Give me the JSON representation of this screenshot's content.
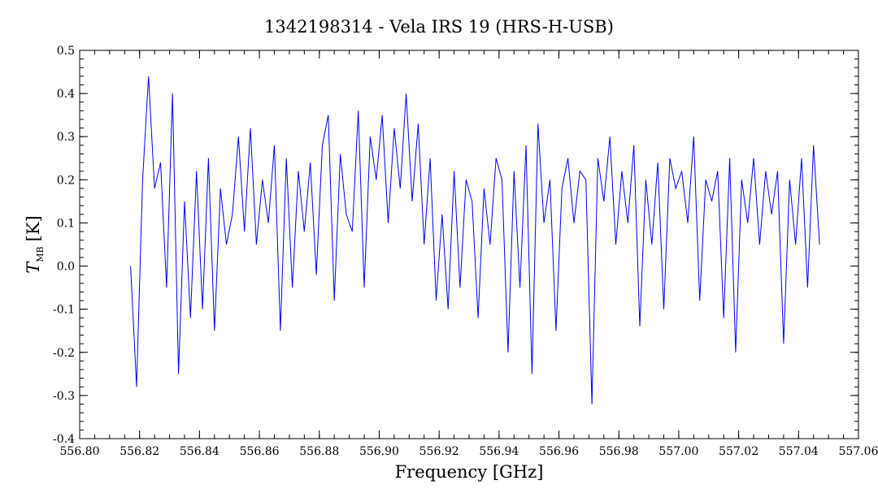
{
  "chart_data": {
    "type": "line",
    "title": "1342198314 - Vela IRS 19 (HRS-H-USB)",
    "xlabel": "Frequency [GHz]",
    "ylabel_symbol": "T",
    "ylabel_subscript": "MB",
    "ylabel_unit": "[K]",
    "xlim": [
      556.8,
      557.06
    ],
    "ylim": [
      -0.4,
      0.5
    ],
    "x_ticks": [
      "556.80",
      "556.82",
      "556.84",
      "556.86",
      "556.88",
      "556.90",
      "556.92",
      "556.94",
      "556.96",
      "556.98",
      "557.00",
      "557.02",
      "557.04",
      "557.06"
    ],
    "y_ticks": [
      "-0.4",
      "-0.3",
      "-0.2",
      "-0.1",
      "0.0",
      "0.1",
      "0.2",
      "0.3",
      "0.4",
      "0.5"
    ],
    "grid": false,
    "series": [
      {
        "color": "#0000ff",
        "x": [
          556.817,
          556.819,
          556.821,
          556.823,
          556.825,
          556.827,
          556.829,
          556.831,
          556.833,
          556.835,
          556.837,
          556.839,
          556.841,
          556.843,
          556.845,
          556.847,
          556.849,
          556.851,
          556.853,
          556.855,
          556.857,
          556.859,
          556.861,
          556.863,
          556.865,
          556.867,
          556.869,
          556.871,
          556.873,
          556.875,
          556.877,
          556.879,
          556.881,
          556.883,
          556.885,
          556.887,
          556.889,
          556.891,
          556.893,
          556.895,
          556.897,
          556.899,
          556.901,
          556.903,
          556.905,
          556.907,
          556.909,
          556.911,
          556.913,
          556.915,
          556.917,
          556.919,
          556.921,
          556.923,
          556.925,
          556.927,
          556.929,
          556.931,
          556.933,
          556.935,
          556.937,
          556.939,
          556.941,
          556.943,
          556.945,
          556.947,
          556.949,
          556.951,
          556.953,
          556.955,
          556.957,
          556.959,
          556.961,
          556.963,
          556.965,
          556.967,
          556.969,
          556.971,
          556.973,
          556.975,
          556.977,
          556.979,
          556.981,
          556.983,
          556.985,
          556.987,
          556.989,
          556.991,
          556.993,
          556.995,
          556.997,
          556.999,
          557.001,
          557.003,
          557.005,
          557.007,
          557.009,
          557.011,
          557.013,
          557.015,
          557.017,
          557.019,
          557.021,
          557.023,
          557.025,
          557.027,
          557.029,
          557.031,
          557.033,
          557.035,
          557.037,
          557.039,
          557.041,
          557.043,
          557.045,
          557.047
        ],
        "y": [
          0.0,
          -0.28,
          0.2,
          0.44,
          0.18,
          0.24,
          -0.05,
          0.4,
          -0.25,
          0.15,
          -0.12,
          0.22,
          -0.1,
          0.25,
          -0.15,
          0.18,
          0.05,
          0.12,
          0.3,
          0.08,
          0.32,
          0.05,
          0.2,
          0.1,
          0.28,
          -0.15,
          0.25,
          -0.05,
          0.22,
          0.08,
          0.24,
          -0.02,
          0.28,
          0.35,
          -0.08,
          0.26,
          0.12,
          0.08,
          0.36,
          -0.05,
          0.3,
          0.2,
          0.35,
          0.1,
          0.32,
          0.18,
          0.4,
          0.15,
          0.33,
          0.05,
          0.25,
          -0.08,
          0.12,
          -0.1,
          0.22,
          -0.05,
          0.2,
          0.15,
          -0.12,
          0.18,
          0.05,
          0.25,
          0.2,
          -0.2,
          0.22,
          -0.05,
          0.28,
          -0.25,
          0.33,
          0.1,
          0.2,
          -0.15,
          0.18,
          0.25,
          0.1,
          0.22,
          0.2,
          -0.32,
          0.25,
          0.15,
          0.3,
          0.05,
          0.22,
          0.1,
          0.28,
          -0.14,
          0.2,
          0.05,
          0.24,
          -0.1,
          0.25,
          0.18,
          0.22,
          0.1,
          0.3,
          -0.08,
          0.2,
          0.15,
          0.22,
          -0.12,
          0.25,
          -0.2,
          0.2,
          0.1,
          0.25,
          0.05,
          0.22,
          0.12,
          0.22,
          -0.18,
          0.2,
          0.05,
          0.25,
          -0.05,
          0.28,
          0.05
        ]
      }
    ]
  }
}
